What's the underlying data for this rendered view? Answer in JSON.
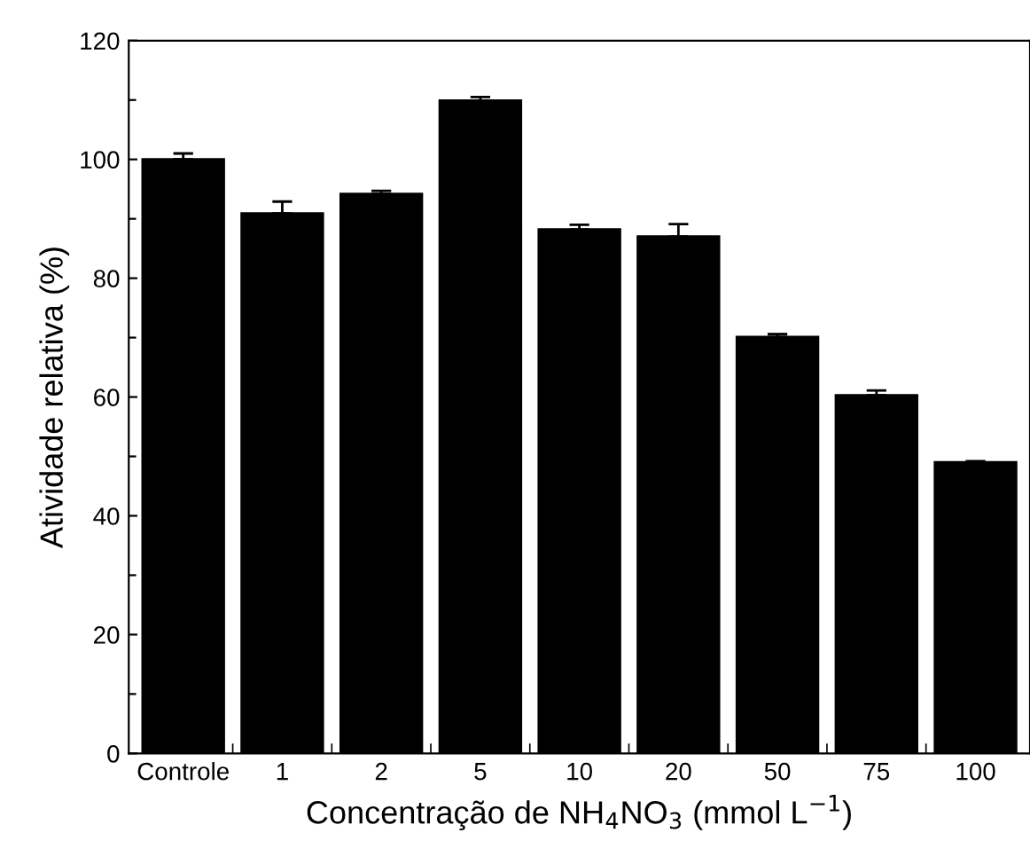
{
  "chart_data": {
    "type": "bar",
    "xlabel": "Concentração de NH$_{4}$NO$_{3}$ (mmol L$^{−1}$)",
    "ylabel": "Atividade relativa (%)",
    "categories": [
      "Controle",
      "1",
      "2",
      "5",
      "10",
      "20",
      "50",
      "75",
      "100"
    ],
    "values": [
      100,
      90.9,
      94.2,
      109.9,
      88.2,
      87.0,
      70.1,
      60.3,
      49.0
    ],
    "errors": [
      1.0,
      2.0,
      0.5,
      0.6,
      0.8,
      2.1,
      0.5,
      0.8,
      0.2
    ],
    "color": "#000000",
    "ylim": [
      0,
      120
    ],
    "yticks": [
      0,
      {
        "value": 10,
        "label": null
      },
      20,
      {
        "value": 30,
        "label": null
      },
      40,
      {
        "value": 50,
        "label": null
      },
      60,
      {
        "value": 70,
        "label": null
      },
      80,
      {
        "value": 90,
        "label": null
      },
      100,
      {
        "value": 110,
        "label": null
      },
      120
    ],
    "grid": false
  }
}
